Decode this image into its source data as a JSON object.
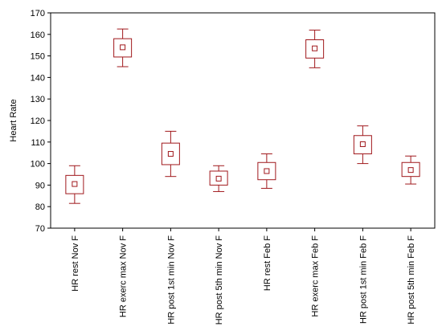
{
  "chart_data": {
    "type": "box",
    "ylabel": "Heart Rate",
    "ylim": [
      70,
      170
    ],
    "yticks": [
      70,
      80,
      90,
      100,
      110,
      120,
      130,
      140,
      150,
      160,
      170
    ],
    "grid": false,
    "legend": "none",
    "color": "#a0181c",
    "categories": [
      "HR rest Nov F",
      "HR exerc max Nov F",
      "HR post 1st min Nov F",
      "HR post 5th min Nov F",
      "HR rest Feb F",
      "HR exerc max Feb F",
      "HR post 1st min Feb F",
      "HR post 5th min Feb F"
    ],
    "boxes": [
      {
        "mean": 90.5,
        "box_low": 86,
        "box_high": 94.5,
        "whisker_low": 81.5,
        "whisker_high": 99
      },
      {
        "mean": 154,
        "box_low": 149.5,
        "box_high": 158,
        "whisker_low": 145,
        "whisker_high": 162.5
      },
      {
        "mean": 104.5,
        "box_low": 99.5,
        "box_high": 109.5,
        "whisker_low": 94,
        "whisker_high": 115
      },
      {
        "mean": 93,
        "box_low": 90,
        "box_high": 96.5,
        "whisker_low": 87,
        "whisker_high": 99
      },
      {
        "mean": 96.5,
        "box_low": 92.5,
        "box_high": 100.5,
        "whisker_low": 88.5,
        "whisker_high": 104.5
      },
      {
        "mean": 153.5,
        "box_low": 149,
        "box_high": 157.5,
        "whisker_low": 144.5,
        "whisker_high": 162
      },
      {
        "mean": 109,
        "box_low": 104.5,
        "box_high": 113,
        "whisker_low": 100,
        "whisker_high": 117.5
      },
      {
        "mean": 97,
        "box_low": 94,
        "box_high": 100.5,
        "whisker_low": 90.5,
        "whisker_high": 103.5
      }
    ]
  }
}
